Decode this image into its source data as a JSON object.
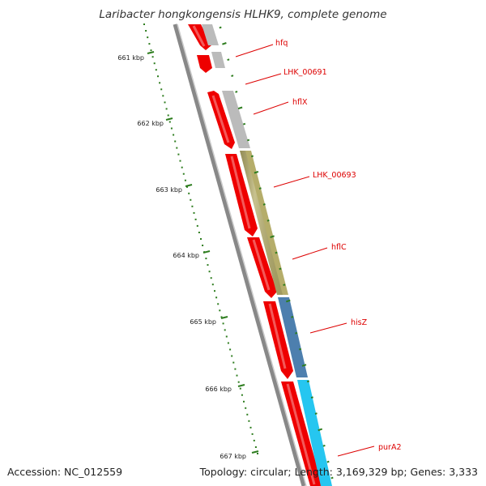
{
  "title": "Laribacter hongkongensis HLHK9, complete genome",
  "footer": {
    "accession": "Accession: NC_012559",
    "summary": "Topology: circular; Length: 3,169,329 bp; Genes: 3,333"
  },
  "colors": {
    "cds_forward": "#ee0000",
    "backbone": "#999999",
    "tick": "#2e7d1f",
    "label": "#dd0000"
  },
  "kbp_ticks": [
    {
      "label": "661 kbp"
    },
    {
      "label": "662 kbp"
    },
    {
      "label": "663 kbp"
    },
    {
      "label": "664 kbp"
    },
    {
      "label": "665 kbp"
    },
    {
      "label": "666 kbp"
    },
    {
      "label": "667 kbp"
    }
  ],
  "genes": [
    {
      "name": "hfq",
      "color": "#bbbbbb"
    },
    {
      "name": "LHK_00691",
      "color": "#bbbbbb"
    },
    {
      "name": "hflX",
      "color": "#bbbbbb"
    },
    {
      "name": "LHK_00693",
      "color": "#b5ad6a"
    },
    {
      "name": "hflC",
      "color": "#b5ad6a"
    },
    {
      "name": "hisZ",
      "color": "#4d7fae"
    },
    {
      "name": "purA2",
      "color": "#26c6f0"
    }
  ]
}
